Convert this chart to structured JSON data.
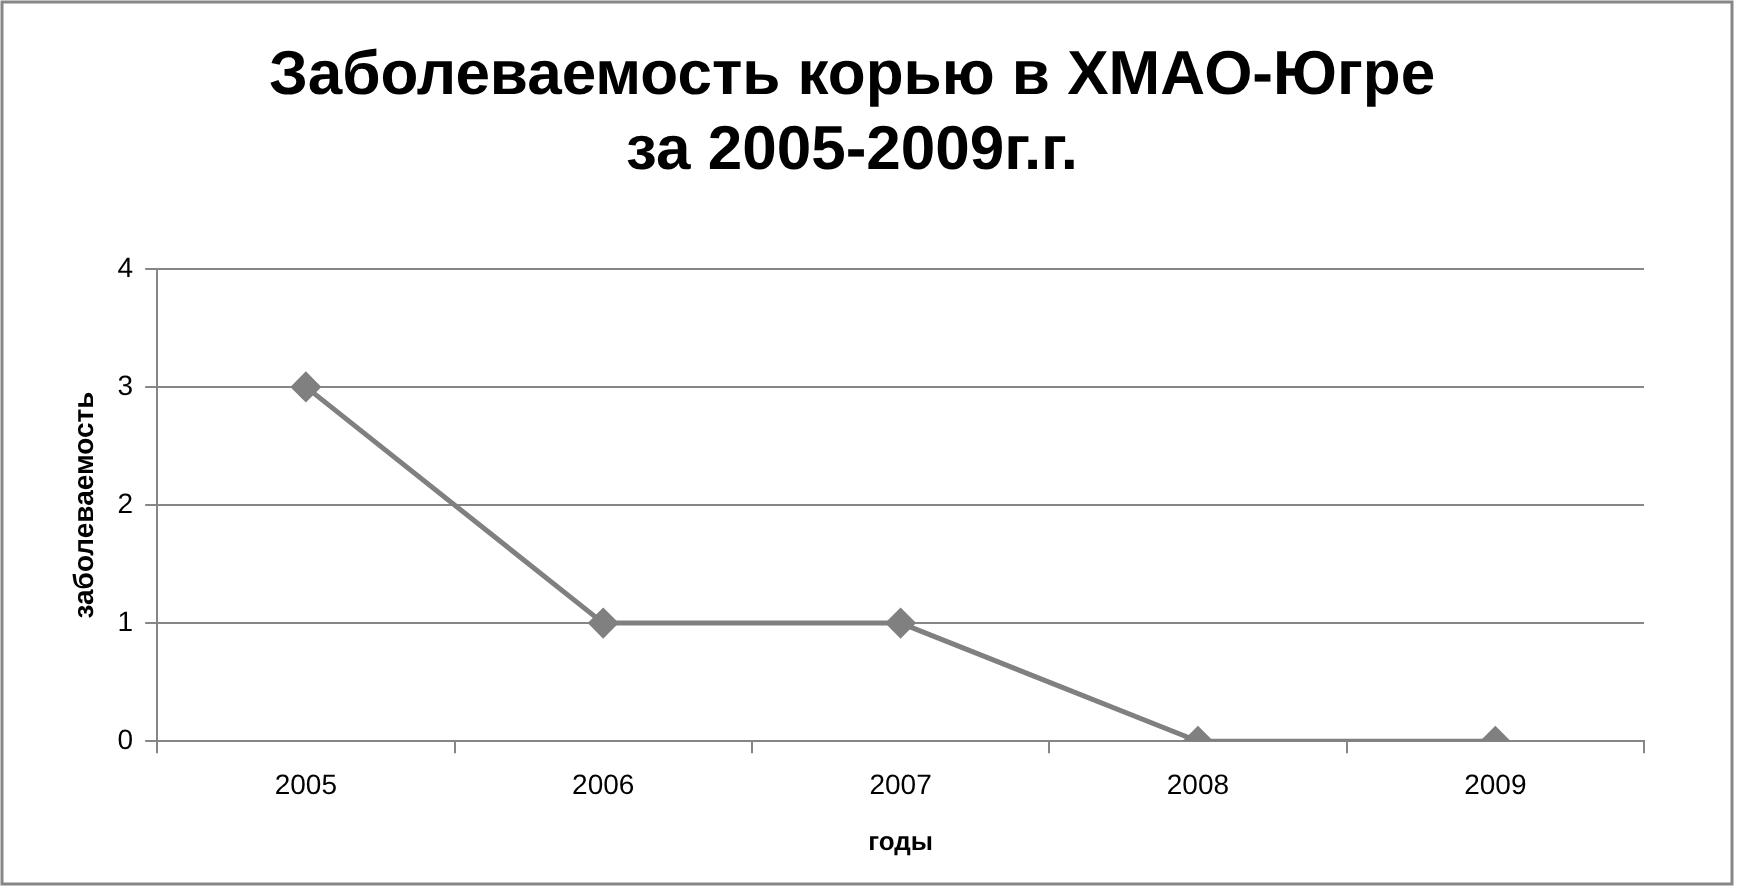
{
  "chart_data": {
    "type": "line",
    "title": [
      "Заболеваемость корью в ХМАО-Югре",
      "за 2005-2009г.г."
    ],
    "xlabel": "годы",
    "ylabel": "заболеваемость",
    "categories": [
      "2005",
      "2006",
      "2007",
      "2008",
      "2009"
    ],
    "series": [
      {
        "color": "#808080",
        "values": [
          3,
          1,
          1,
          0,
          0
        ]
      }
    ],
    "ylim": [
      0,
      4
    ],
    "yticks": [
      0,
      1,
      2,
      3,
      4
    ],
    "grid": "y",
    "legend": false,
    "marker": "diamond",
    "line_style": "solid"
  }
}
